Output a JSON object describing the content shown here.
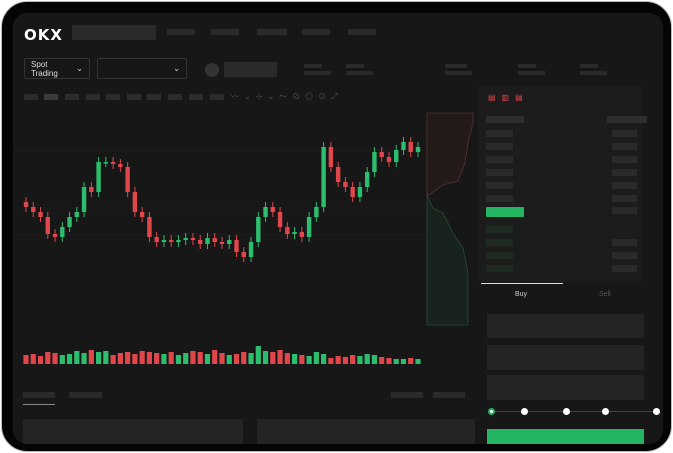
{
  "header": {
    "logo": "OKX"
  },
  "toolbar": {
    "market_select": "Spot Trading",
    "pair_select": ""
  },
  "trade": {
    "buy_tab": "Buy",
    "sell_tab": "Sell",
    "leverage_steps": 5,
    "leverage_selected": 0
  },
  "colors": {
    "up": "#2dbd6e",
    "down": "#e0474c",
    "background": "#171717",
    "accent": "#23b562"
  },
  "chart_data": {
    "type": "candlestick",
    "open_first": 100,
    "close": [
      95,
      90,
      85,
      68,
      65,
      75,
      85,
      90,
      115,
      110,
      140,
      140,
      138,
      135,
      110,
      90,
      85,
      65,
      60,
      62,
      60,
      62,
      64,
      62,
      58,
      64,
      60,
      58,
      62,
      50,
      45,
      60,
      85,
      95,
      90,
      75,
      68,
      70,
      65,
      85,
      95,
      155,
      135,
      120,
      115,
      105,
      115,
      130,
      150,
      145,
      140,
      152,
      160,
      150,
      155
    ],
    "volume": [
      9,
      10,
      8,
      12,
      11,
      9,
      10,
      13,
      11,
      14,
      12,
      13,
      9,
      11,
      12,
      10,
      13,
      12,
      11,
      10,
      12,
      9,
      11,
      13,
      12,
      10,
      14,
      11,
      9,
      10,
      12,
      11,
      18,
      13,
      12,
      14,
      11,
      10,
      9,
      8,
      12,
      10,
      6,
      8,
      7,
      9,
      8,
      10,
      9,
      7,
      6,
      5,
      5,
      6,
      5
    ]
  }
}
